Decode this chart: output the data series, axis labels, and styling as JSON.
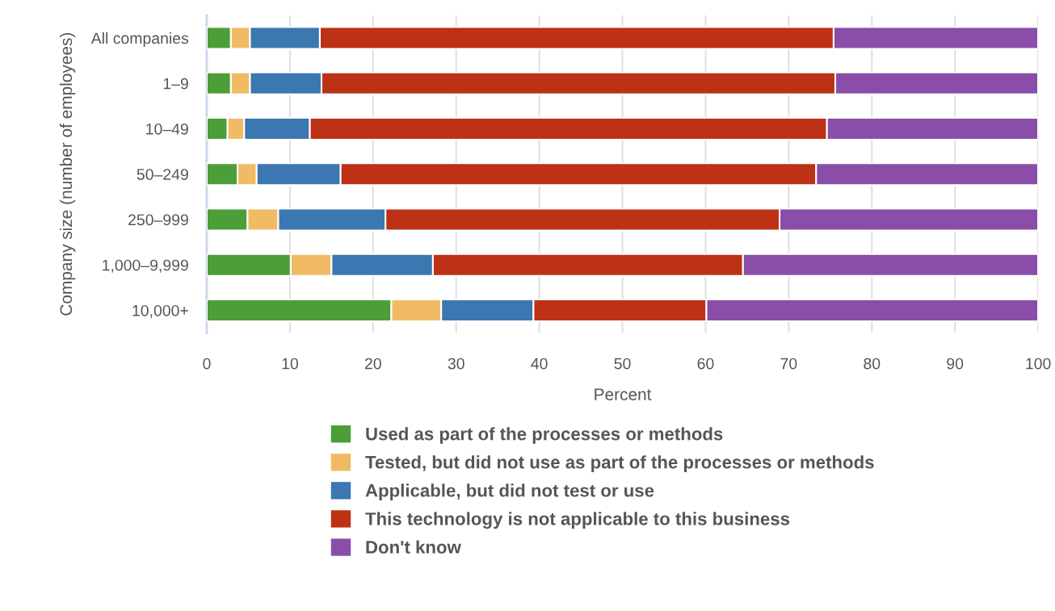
{
  "chart_data": {
    "type": "bar",
    "orientation": "horizontal",
    "stacked": true,
    "xlabel": "Percent",
    "ylabel": "Company size (number of employees)",
    "categories": [
      "All companies",
      "1–9",
      "10–49",
      "50–249",
      "250–999",
      "1,000–9,999",
      "10,000+"
    ],
    "series": [
      {
        "name": "Used as part of the processes or methods",
        "color": "#4d9e38",
        "values": [
          2.9,
          2.9,
          2.5,
          3.7,
          4.9,
          10.1,
          22.2
        ]
      },
      {
        "name": "Tested, but did not use as part of the processes or methods",
        "color": "#f0bb63",
        "values": [
          2.3,
          2.3,
          2.0,
          2.3,
          3.7,
          4.9,
          6.0
        ]
      },
      {
        "name": "Applicable, but did not test or use",
        "color": "#3b77b0",
        "values": [
          8.4,
          8.6,
          7.9,
          10.1,
          12.9,
          12.2,
          11.1
        ]
      },
      {
        "name": "This technology is not applicable to this business",
        "color": "#bd3115",
        "values": [
          61.8,
          61.8,
          62.2,
          57.2,
          47.4,
          37.3,
          20.8
        ]
      },
      {
        "name": "Don't know",
        "color": "#8a4ea8",
        "values": [
          24.6,
          24.4,
          25.4,
          26.7,
          31.1,
          35.5,
          39.9
        ]
      }
    ],
    "xlim": [
      0,
      100
    ],
    "xticks": [
      0,
      10,
      20,
      30,
      40,
      50,
      60,
      70,
      80,
      90,
      100
    ],
    "grid": "x",
    "legend": "bottom"
  }
}
